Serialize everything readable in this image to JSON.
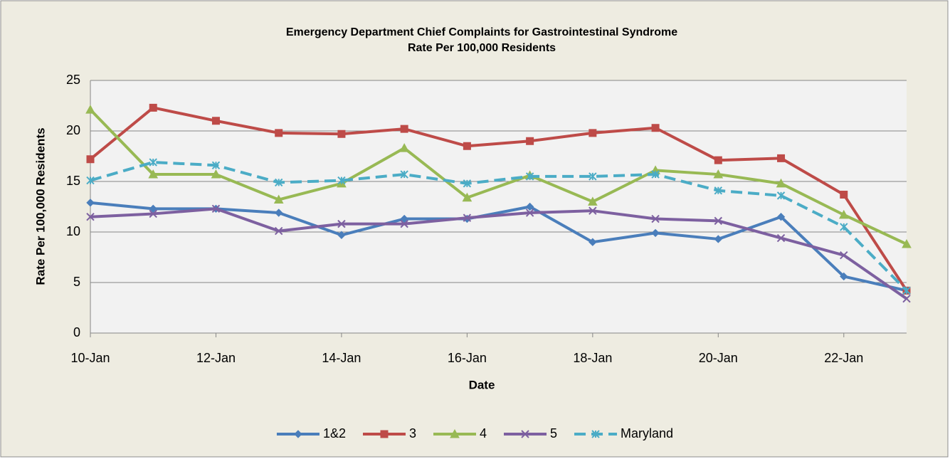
{
  "chart_data": {
    "type": "line",
    "title": "Emergency Department Chief Complaints for Gastrointestinal Syndrome",
    "subtitle": "Rate Per 100,000 Residents",
    "x_label": "Date",
    "y_label": "Rate Per 100,000 Residents",
    "categories": [
      "10-Jan",
      null,
      "12-Jan",
      null,
      "14-Jan",
      null,
      "16-Jan",
      null,
      "18-Jan",
      null,
      "20-Jan",
      null,
      "22-Jan",
      null
    ],
    "ylim": [
      0,
      25
    ],
    "yticks": [
      0,
      5,
      10,
      15,
      20,
      25
    ],
    "grid": true,
    "legend": "bottom",
    "series": [
      {
        "name": "1&2",
        "color": "#4a7ebb",
        "marker": "diamond",
        "values": [
          12.9,
          12.3,
          12.3,
          11.9,
          9.7,
          11.3,
          11.3,
          12.5,
          9.0,
          9.9,
          9.3,
          11.5,
          5.6,
          4.2
        ]
      },
      {
        "name": "3",
        "color": "#be4b48",
        "marker": "square",
        "values": [
          17.2,
          22.3,
          21.0,
          19.8,
          19.7,
          20.2,
          18.5,
          19.0,
          19.8,
          20.3,
          17.1,
          17.3,
          13.7,
          4.2
        ]
      },
      {
        "name": "4",
        "color": "#98b954",
        "marker": "triangle",
        "values": [
          22.1,
          15.7,
          15.7,
          13.2,
          14.8,
          18.3,
          13.4,
          15.6,
          13.0,
          16.1,
          15.7,
          14.8,
          11.7,
          8.8
        ]
      },
      {
        "name": "5",
        "color": "#7d60a0",
        "marker": "x",
        "values": [
          11.5,
          11.8,
          12.3,
          10.1,
          10.8,
          10.8,
          11.4,
          11.9,
          12.1,
          11.3,
          11.1,
          9.4,
          7.7,
          3.4
        ]
      },
      {
        "name": "Maryland",
        "color": "#4bacc6",
        "marker": "star",
        "dashed": true,
        "values": [
          15.1,
          16.9,
          16.6,
          14.9,
          15.1,
          15.7,
          14.8,
          15.5,
          15.5,
          15.7,
          14.1,
          13.6,
          10.5,
          4.2
        ]
      }
    ]
  }
}
